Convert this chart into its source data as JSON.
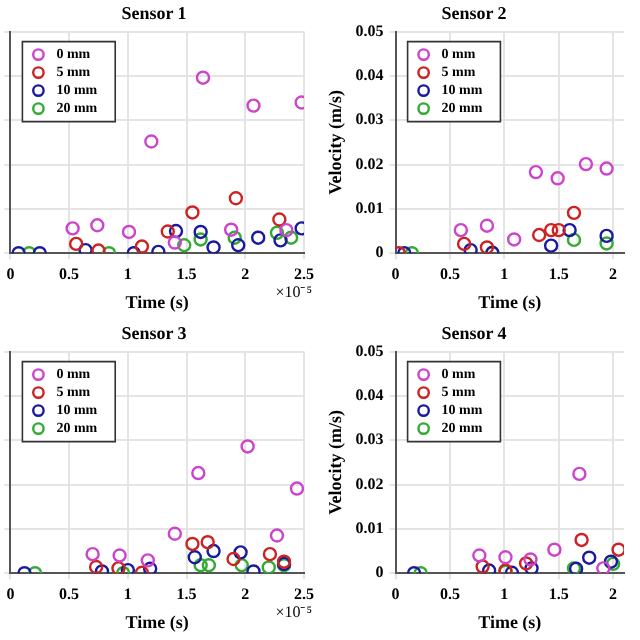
{
  "chart_data": [
    {
      "type": "scatter",
      "title": "Sensor 1",
      "xlabel": "Time (s)",
      "annotations": [
        "×10⁻⁵"
      ],
      "xlim": [
        0,
        2.5
      ],
      "xticks": [
        0,
        0.5,
        1,
        1.5,
        2,
        2.5
      ],
      "ylim": [
        0,
        0.05
      ],
      "yticks": [
        0,
        0.01,
        0.02,
        0.03,
        0.04,
        0.05
      ],
      "tick_labels": "x",
      "grid": true,
      "legend": "top left",
      "marker": "circle",
      "series": [
        {
          "name": "0 mm",
          "color": "#cc44cc",
          "x": [
            0.53,
            0.74,
            1.01,
            1.2,
            1.4,
            1.64,
            1.88,
            2.07,
            2.35,
            2.48
          ],
          "values": [
            0.0056,
            0.0063,
            0.0048,
            0.0252,
            0.0024,
            0.0396,
            0.0053,
            0.0333,
            0.0052,
            0.034
          ]
        },
        {
          "name": "5 mm",
          "color": "#cc2222",
          "x": [
            0.56,
            0.75,
            1.12,
            1.34,
            1.55,
            1.92,
            2.29
          ],
          "values": [
            0.0021,
            0.0006,
            0.0015,
            0.0049,
            0.0092,
            0.0124,
            0.0076
          ]
        },
        {
          "name": "10 mm",
          "color": "#1a1aa0",
          "x": [
            0.07,
            0.25,
            0.64,
            1.05,
            1.26,
            1.41,
            1.62,
            1.73,
            1.94,
            2.11,
            2.3,
            2.48
          ],
          "values": [
            0,
            0,
            0.0007,
            0,
            0.0003,
            0.005,
            0.0048,
            0.0013,
            0.0018,
            0.0035,
            0.0029,
            0.0056
          ]
        },
        {
          "name": "20 mm",
          "color": "#33aa33",
          "x": [
            0.16,
            0.84,
            1.48,
            1.62,
            1.91,
            2.27,
            2.39
          ],
          "values": [
            0,
            0,
            0.0018,
            0.0031,
            0.0035,
            0.0046,
            0.0035
          ]
        }
      ]
    },
    {
      "type": "scatter",
      "title": "Sensor 2",
      "xlabel": "Time (s)",
      "ylabel": "Velocity (m/s)",
      "xlim": [
        0,
        2.1
      ],
      "xticks": [
        0,
        0.5,
        1,
        1.5,
        2
      ],
      "ylim": [
        0,
        0.05
      ],
      "yticks": [
        0,
        0.01,
        0.02,
        0.03,
        0.04,
        0.05
      ],
      "grid": true,
      "legend": "top left",
      "marker": "circle",
      "series": [
        {
          "name": "0 mm",
          "color": "#cc44cc",
          "x": [
            0.6,
            0.84,
            1.09,
            1.29,
            1.49,
            1.75,
            1.94
          ],
          "values": [
            0.0052,
            0.0062,
            0.0031,
            0.0183,
            0.0169,
            0.0201,
            0.0191
          ]
        },
        {
          "name": "5 mm",
          "color": "#cc2222",
          "x": [
            0.03,
            0.63,
            0.84,
            1.32,
            1.43,
            1.5,
            1.64
          ],
          "values": [
            0,
            0.0021,
            0.0013,
            0.0041,
            0.0052,
            0.0052,
            0.0091
          ]
        },
        {
          "name": "10 mm",
          "color": "#1a1aa0",
          "x": [
            0.08,
            0.69,
            0.89,
            1.43,
            1.6,
            1.94
          ],
          "values": [
            0,
            0.0007,
            0.0001,
            0.0017,
            0.0052,
            0.0039
          ]
        },
        {
          "name": "20 mm",
          "color": "#33aa33",
          "x": [
            0.15,
            0.89,
            1.64,
            1.94
          ],
          "values": [
            0,
            0,
            0.003,
            0.0022
          ]
        }
      ]
    },
    {
      "type": "scatter",
      "title": "Sensor 3",
      "xlabel": "Time (s)",
      "annotations": [
        "×10⁻⁵"
      ],
      "xlim": [
        0,
        2.5
      ],
      "xticks": [
        0,
        0.5,
        1,
        1.5,
        2,
        2.5
      ],
      "ylim": [
        0,
        0.05
      ],
      "yticks": [
        0,
        0.01,
        0.02,
        0.03,
        0.04,
        0.05
      ],
      "tick_labels": "x",
      "grid": true,
      "legend": "top left",
      "marker": "circle",
      "series": [
        {
          "name": "0 mm",
          "color": "#cc44cc",
          "x": [
            0.7,
            0.93,
            1.17,
            1.4,
            1.6,
            2.02,
            2.27,
            2.44
          ],
          "values": [
            0.0043,
            0.004,
            0.0029,
            0.0089,
            0.0226,
            0.0286,
            0.0085,
            0.0191
          ]
        },
        {
          "name": "5 mm",
          "color": "#cc2222",
          "x": [
            0.73,
            0.92,
            1.12,
            1.55,
            1.68,
            1.9,
            2.21,
            2.33
          ],
          "values": [
            0.0014,
            0.0011,
            0.0001,
            0.0066,
            0.007,
            0.0032,
            0.0043,
            0.0026
          ]
        },
        {
          "name": "10 mm",
          "color": "#1a1aa0",
          "x": [
            0.12,
            0.78,
            1.0,
            1.19,
            1.57,
            1.73,
            1.96,
            2.07,
            2.33
          ],
          "values": [
            0,
            0.0004,
            0.0007,
            0.001,
            0.0036,
            0.005,
            0.0047,
            0.0004,
            0.0021
          ]
        },
        {
          "name": "20 mm",
          "color": "#33aa33",
          "x": [
            0.21,
            0.96,
            1.62,
            1.69,
            1.97,
            2.2,
            2.33
          ],
          "values": [
            0,
            0,
            0.0018,
            0.0018,
            0.0018,
            0.0013,
            0.0018
          ]
        }
      ]
    },
    {
      "type": "scatter",
      "title": "Sensor 4",
      "xlabel": "Time (s)",
      "ylabel": "Velocity (m/s)",
      "xlim": [
        0,
        2.1
      ],
      "xticks": [
        0,
        0.5,
        1,
        1.5,
        2
      ],
      "ylim": [
        0,
        0.05
      ],
      "yticks": [
        0,
        0.01,
        0.02,
        0.03,
        0.04,
        0.05
      ],
      "grid": true,
      "legend": "top left",
      "marker": "circle",
      "series": [
        {
          "name": "0 mm",
          "color": "#cc44cc",
          "x": [
            0.77,
            1.01,
            1.24,
            1.46,
            1.69,
            1.91
          ],
          "values": [
            0.004,
            0.0036,
            0.0031,
            0.0053,
            0.0224,
            0.0011
          ]
        },
        {
          "name": "5 mm",
          "color": "#cc2222",
          "x": [
            0.8,
            1.01,
            1.2,
            1.71,
            2.05
          ],
          "values": [
            0.0015,
            0.0006,
            0.0022,
            0.0075,
            0.0053
          ]
        },
        {
          "name": "10 mm",
          "color": "#1a1aa0",
          "x": [
            0.17,
            0.86,
            1.07,
            1.25,
            1.66,
            1.78,
            1.98
          ],
          "values": [
            0,
            0.0006,
            0.0001,
            0.0011,
            0.001,
            0.0035,
            0.0026
          ]
        },
        {
          "name": "20 mm",
          "color": "#33aa33",
          "x": [
            0.23,
            1.01,
            1.64,
            2.0
          ],
          "values": [
            0,
            0.0003,
            0.0011,
            0.0021
          ]
        }
      ]
    }
  ]
}
